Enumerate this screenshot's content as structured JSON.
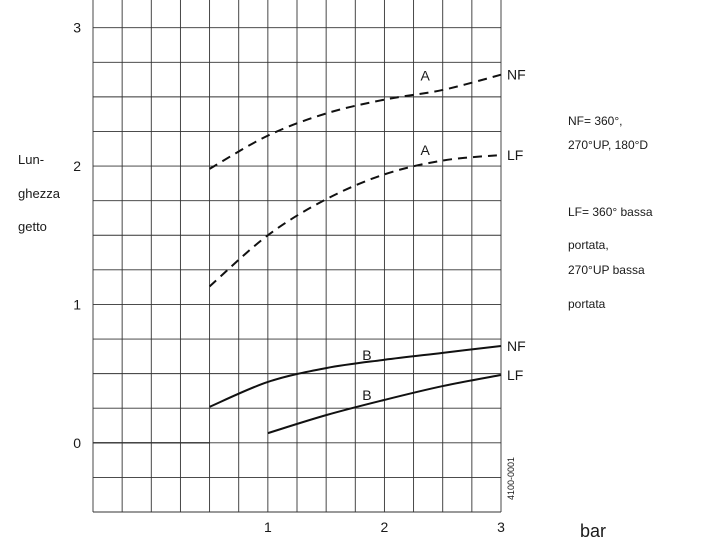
{
  "chart_data": {
    "type": "line",
    "xlabel": "bar",
    "ylabel_lines": [
      "Lun-",
      "ghezza",
      "getto"
    ],
    "xlim": [
      -0.5,
      3
    ],
    "ylim": [
      -0.5,
      3.2
    ],
    "x_ticks": [
      1,
      2,
      3
    ],
    "y_ticks": [
      0,
      1,
      2,
      3
    ],
    "grid": true,
    "series": [
      {
        "name": "A",
        "end_label": "NF",
        "style": "dashed",
        "x": [
          0.5,
          1.0,
          1.5,
          2.0,
          2.5,
          3.0
        ],
        "y": [
          1.98,
          2.22,
          2.38,
          2.48,
          2.55,
          2.66
        ]
      },
      {
        "name": "A",
        "end_label": "LF",
        "style": "dashed",
        "x": [
          0.5,
          1.0,
          1.5,
          2.0,
          2.5,
          3.0
        ],
        "y": [
          1.13,
          1.5,
          1.76,
          1.94,
          2.04,
          2.08
        ]
      },
      {
        "name": "B",
        "end_label": "NF",
        "style": "solid",
        "x": [
          0.5,
          1.0,
          1.5,
          2.0,
          2.5,
          3.0
        ],
        "y": [
          0.26,
          0.44,
          0.54,
          0.6,
          0.65,
          0.7
        ]
      },
      {
        "name": "B",
        "end_label": "LF",
        "style": "solid",
        "x": [
          1.0,
          1.5,
          2.0,
          2.5,
          3.0
        ],
        "y": [
          0.07,
          0.2,
          0.31,
          0.41,
          0.49
        ]
      }
    ],
    "curve_labels": [
      {
        "text": "A",
        "x": 2.35,
        "y": 2.62
      },
      {
        "text": "A",
        "x": 2.35,
        "y": 2.08
      },
      {
        "text": "B",
        "x": 1.85,
        "y": 0.6
      },
      {
        "text": "B",
        "x": 1.85,
        "y": 0.31
      }
    ],
    "code": "4100-0001"
  },
  "notes": {
    "nf_line1": "NF= 360°,",
    "nf_line2": "270°UP, 180°D",
    "lf_line1": "LF= 360° bassa",
    "lf_line2": "portata,",
    "lf_line3": "270°UP bassa",
    "lf_line4": "portata"
  }
}
